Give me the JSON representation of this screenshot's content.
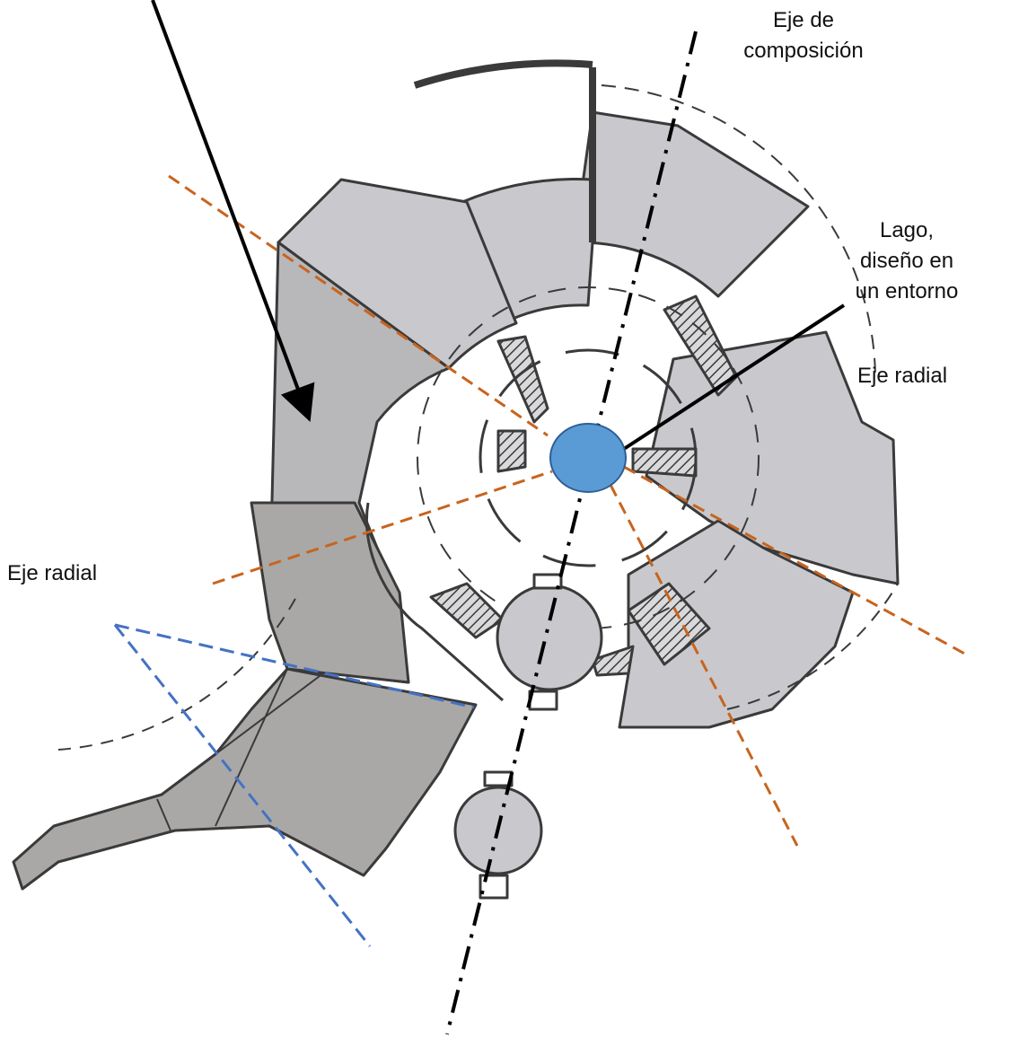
{
  "labels": {
    "composition_axis": "Eje de\ncomposición",
    "lake": "Lago,\ndiseño en\nun entorno",
    "radial_axis_right": "Eje radial",
    "radial_axis_left": "Eje radial"
  },
  "colors": {
    "building_fill": "#c9c8cc",
    "building_dark_fill": "#a9a8a6",
    "wall_stroke": "#3a3a3a",
    "radial_axis_orange": "#c8641e",
    "radial_axis_blue": "#4472c4",
    "lake_fill": "#5b9bd5",
    "lake_stroke": "#2e5f95",
    "composition_axis": "#000000",
    "arrow": "#000000"
  }
}
